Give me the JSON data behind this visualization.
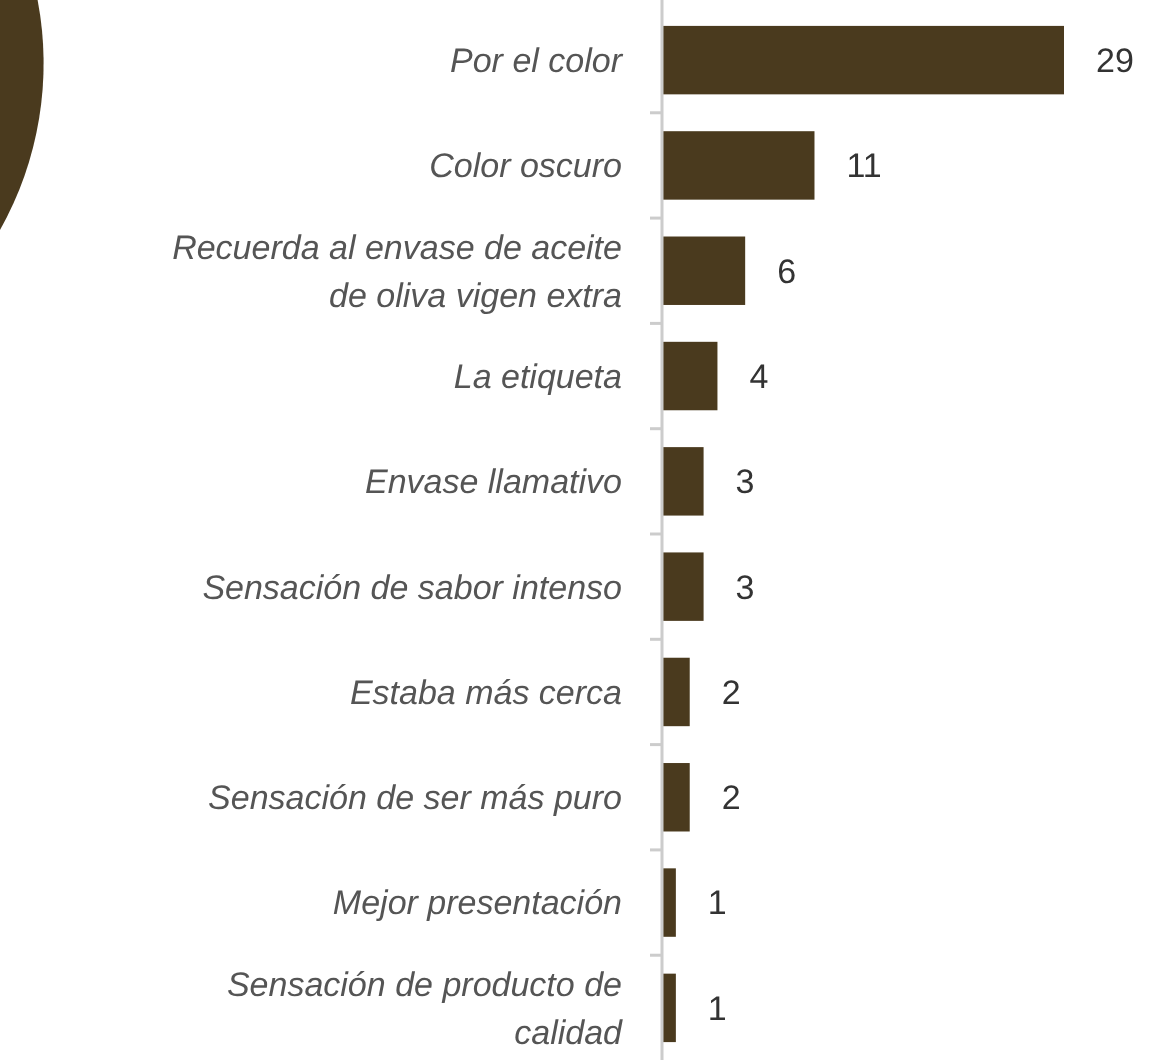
{
  "chart_data": {
    "type": "bar",
    "orientation": "horizontal",
    "categories": [
      "Por el color",
      "Color oscuro",
      "Recuerda al envase de aceite de oliva vigen extra",
      "La etiqueta",
      "Envase llamativo",
      "Sensación de sabor intenso",
      "Estaba más cerca",
      "Sensación de ser más puro",
      "Mejor presentación",
      "Sensación de producto de calidad"
    ],
    "values": [
      29,
      11,
      6,
      4,
      3,
      3,
      2,
      2,
      1,
      1
    ],
    "color": "#4a3a1e",
    "data_labels": true
  }
}
